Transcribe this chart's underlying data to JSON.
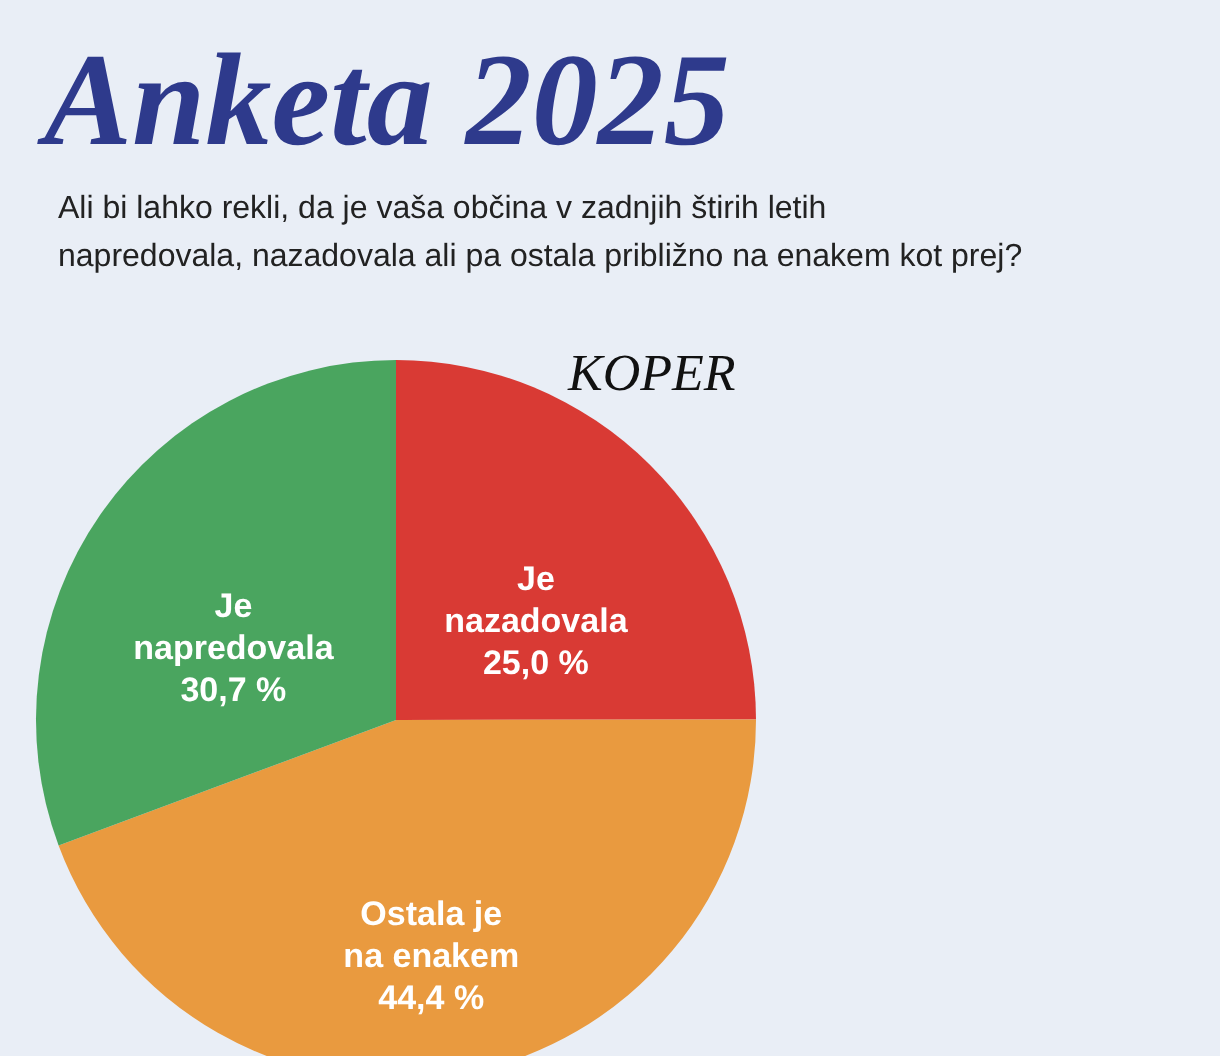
{
  "chart_data": {
    "type": "pie",
    "title": "Anketa 2025",
    "subtitle": "Ali bi lahko rekli, da je vaša občina v zadnjih štirih letih napredovala, nazadovala ali pa ostala približno na enakem kot prej?",
    "annotations": [
      "KOPER"
    ],
    "categories": [
      "Je nazadovala",
      "Ostala je na enakem",
      "Je napredovala"
    ],
    "values": [
      25.0,
      44.4,
      30.7
    ],
    "value_labels": [
      "25,0 %",
      "44,4 %",
      "30,7 %"
    ],
    "colors": [
      "#d93a34",
      "#e99a3f",
      "#4aa55f"
    ]
  }
}
